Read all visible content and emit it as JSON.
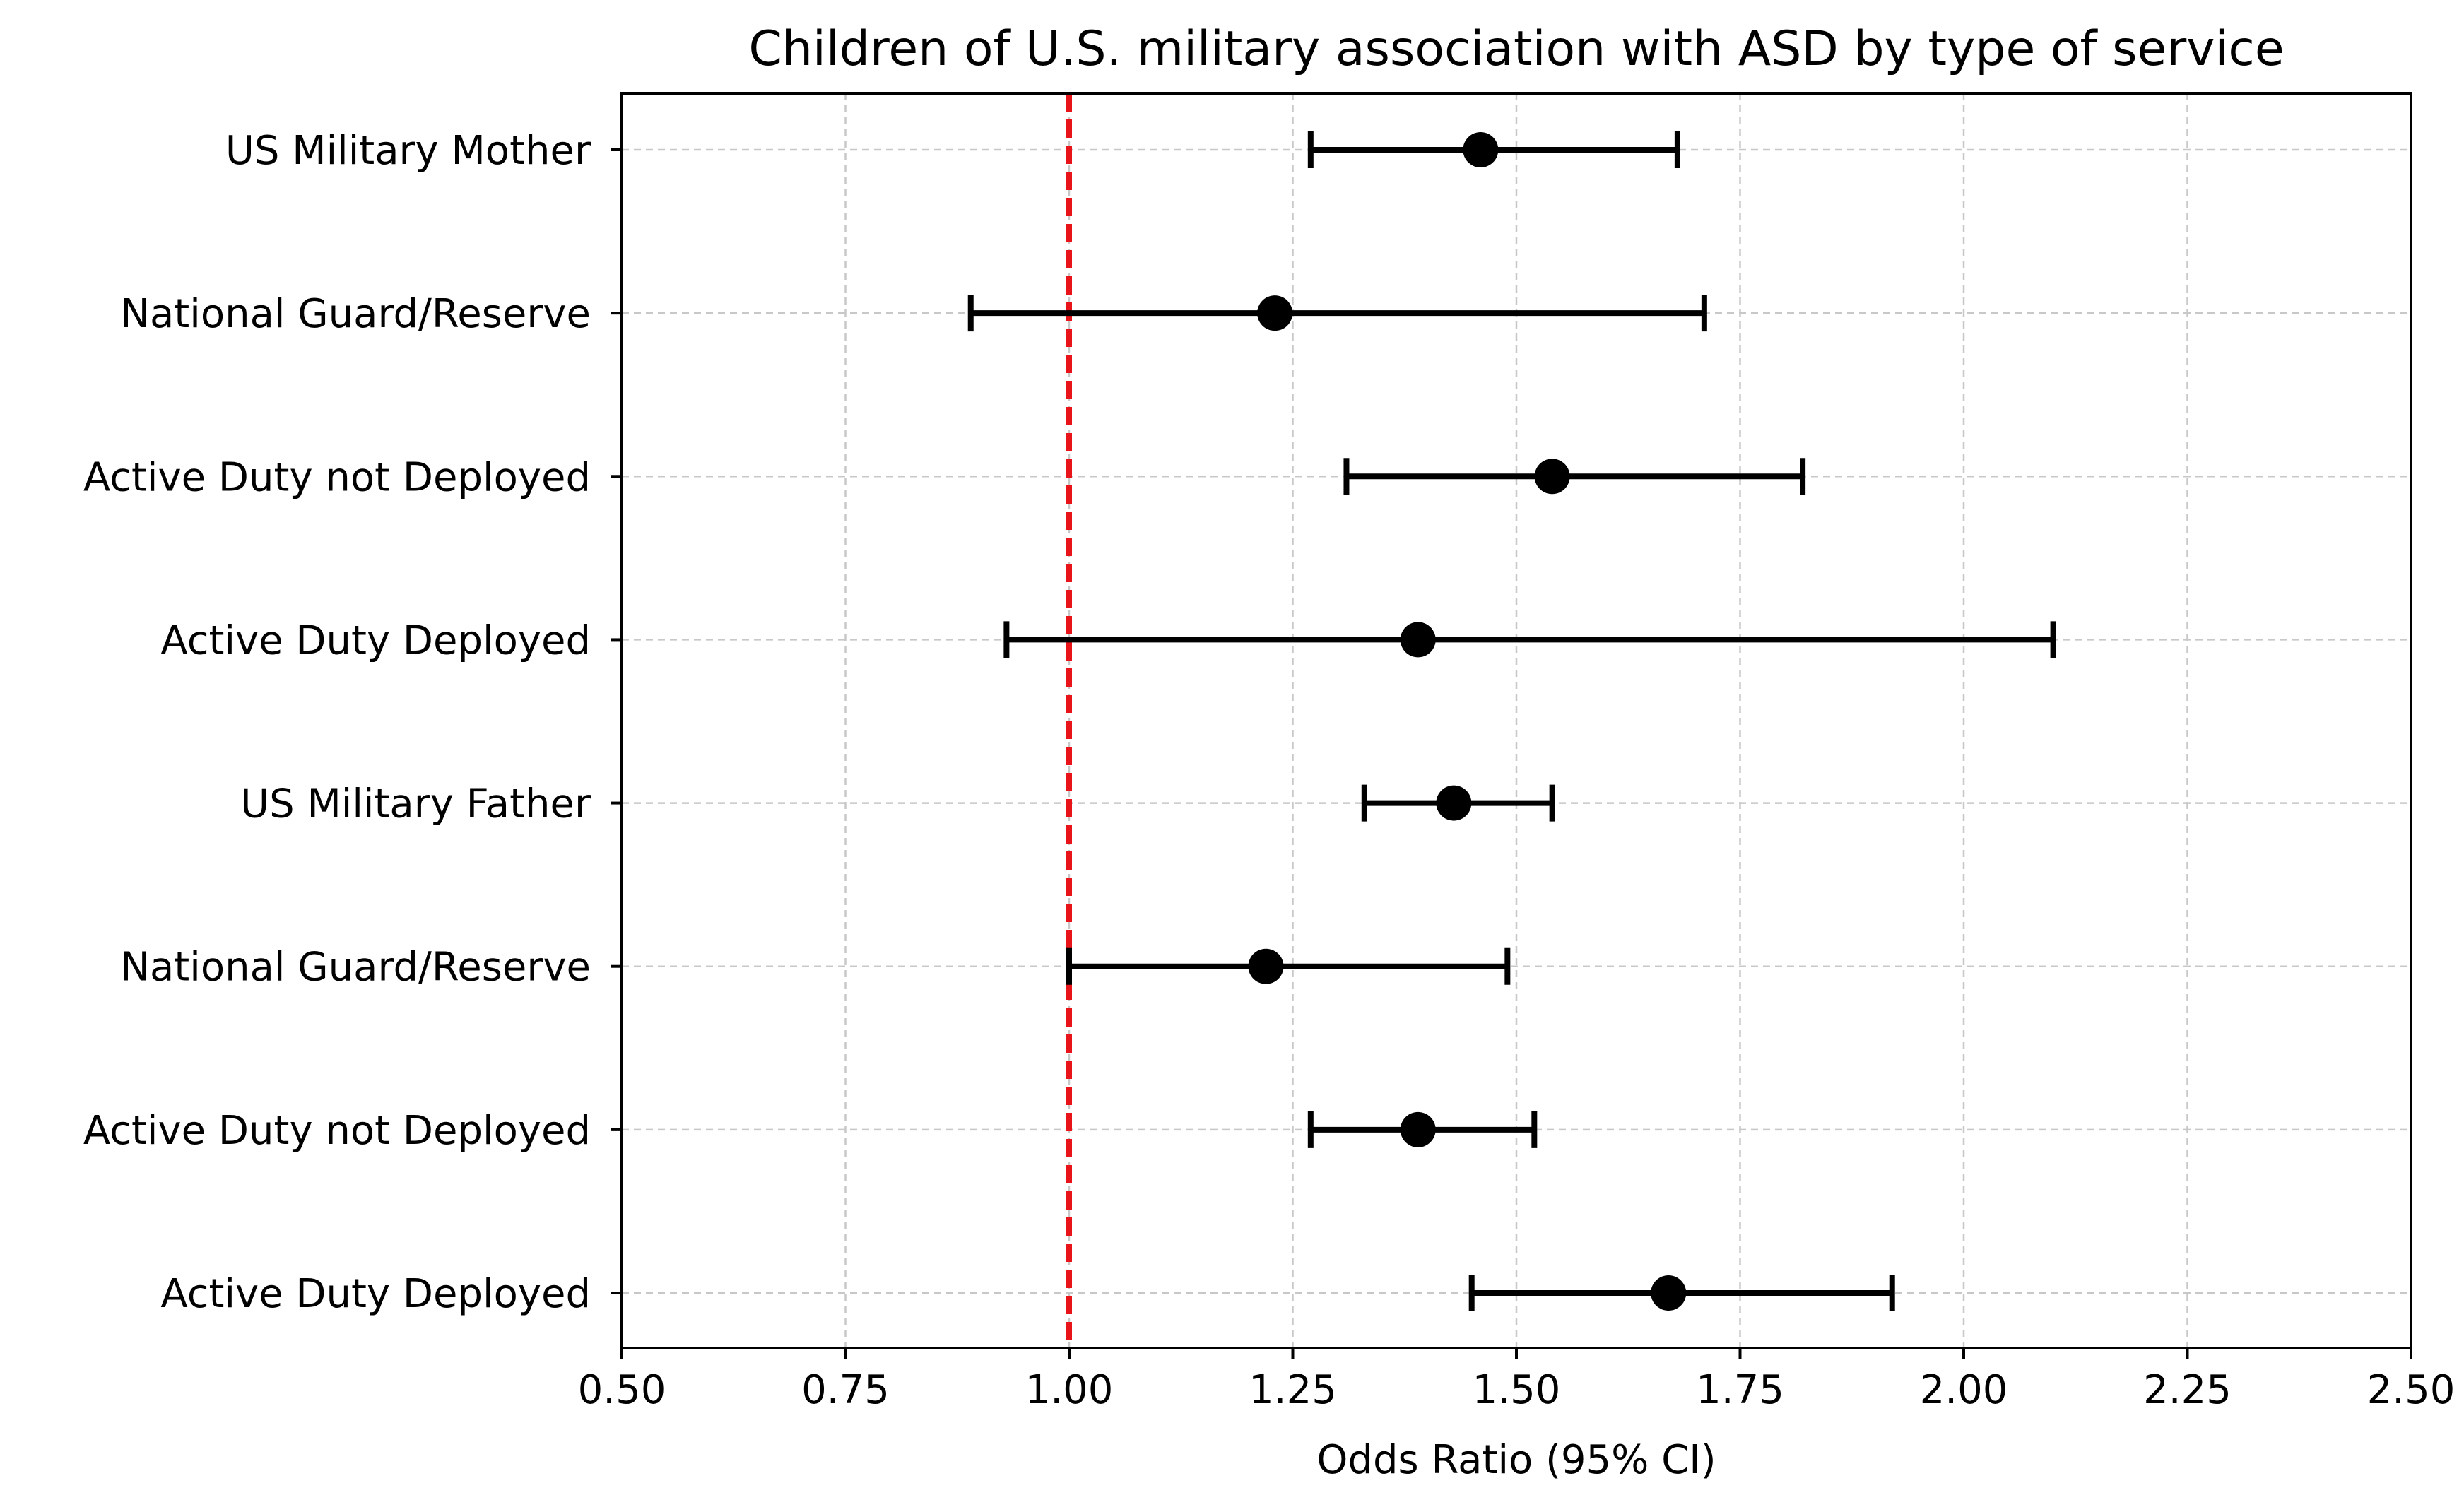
{
  "chart_data": {
    "type": "forest",
    "title": "Children of U.S. military association with ASD by type of service",
    "xlabel": "Odds Ratio (95% CI)",
    "ylabel": "",
    "xlim": [
      0.5,
      2.5
    ],
    "xticks": [
      0.5,
      0.75,
      1.0,
      1.25,
      1.5,
      1.75,
      2.0,
      2.25,
      2.5
    ],
    "xtick_labels": [
      "0.50",
      "0.75",
      "1.00",
      "1.25",
      "1.50",
      "1.75",
      "2.00",
      "2.25",
      "2.50"
    ],
    "grid": true,
    "reference_line": {
      "x": 1.0,
      "style": "dashed",
      "color": "#e8141a"
    },
    "series": [
      {
        "name": "US Military Mother",
        "or": 1.46,
        "ci_low": 1.27,
        "ci_high": 1.68
      },
      {
        "name": "National Guard/Reserve",
        "or": 1.23,
        "ci_low": 0.89,
        "ci_high": 1.71
      },
      {
        "name": "Active Duty not Deployed",
        "or": 1.54,
        "ci_low": 1.31,
        "ci_high": 1.82
      },
      {
        "name": "Active Duty Deployed",
        "or": 1.39,
        "ci_low": 0.93,
        "ci_high": 2.1
      },
      {
        "name": "US Military Father",
        "or": 1.43,
        "ci_low": 1.33,
        "ci_high": 1.54
      },
      {
        "name": "National Guard/Reserve",
        "or": 1.22,
        "ci_low": 1.0,
        "ci_high": 1.49
      },
      {
        "name": "Active Duty not Deployed",
        "or": 1.39,
        "ci_low": 1.27,
        "ci_high": 1.52
      },
      {
        "name": "Active Duty Deployed",
        "or": 1.67,
        "ci_low": 1.45,
        "ci_high": 1.92
      }
    ],
    "colors": {
      "marker": "#000000",
      "errorbar": "#000000",
      "grid": "#c8c8c8",
      "axis": "#000000"
    }
  }
}
